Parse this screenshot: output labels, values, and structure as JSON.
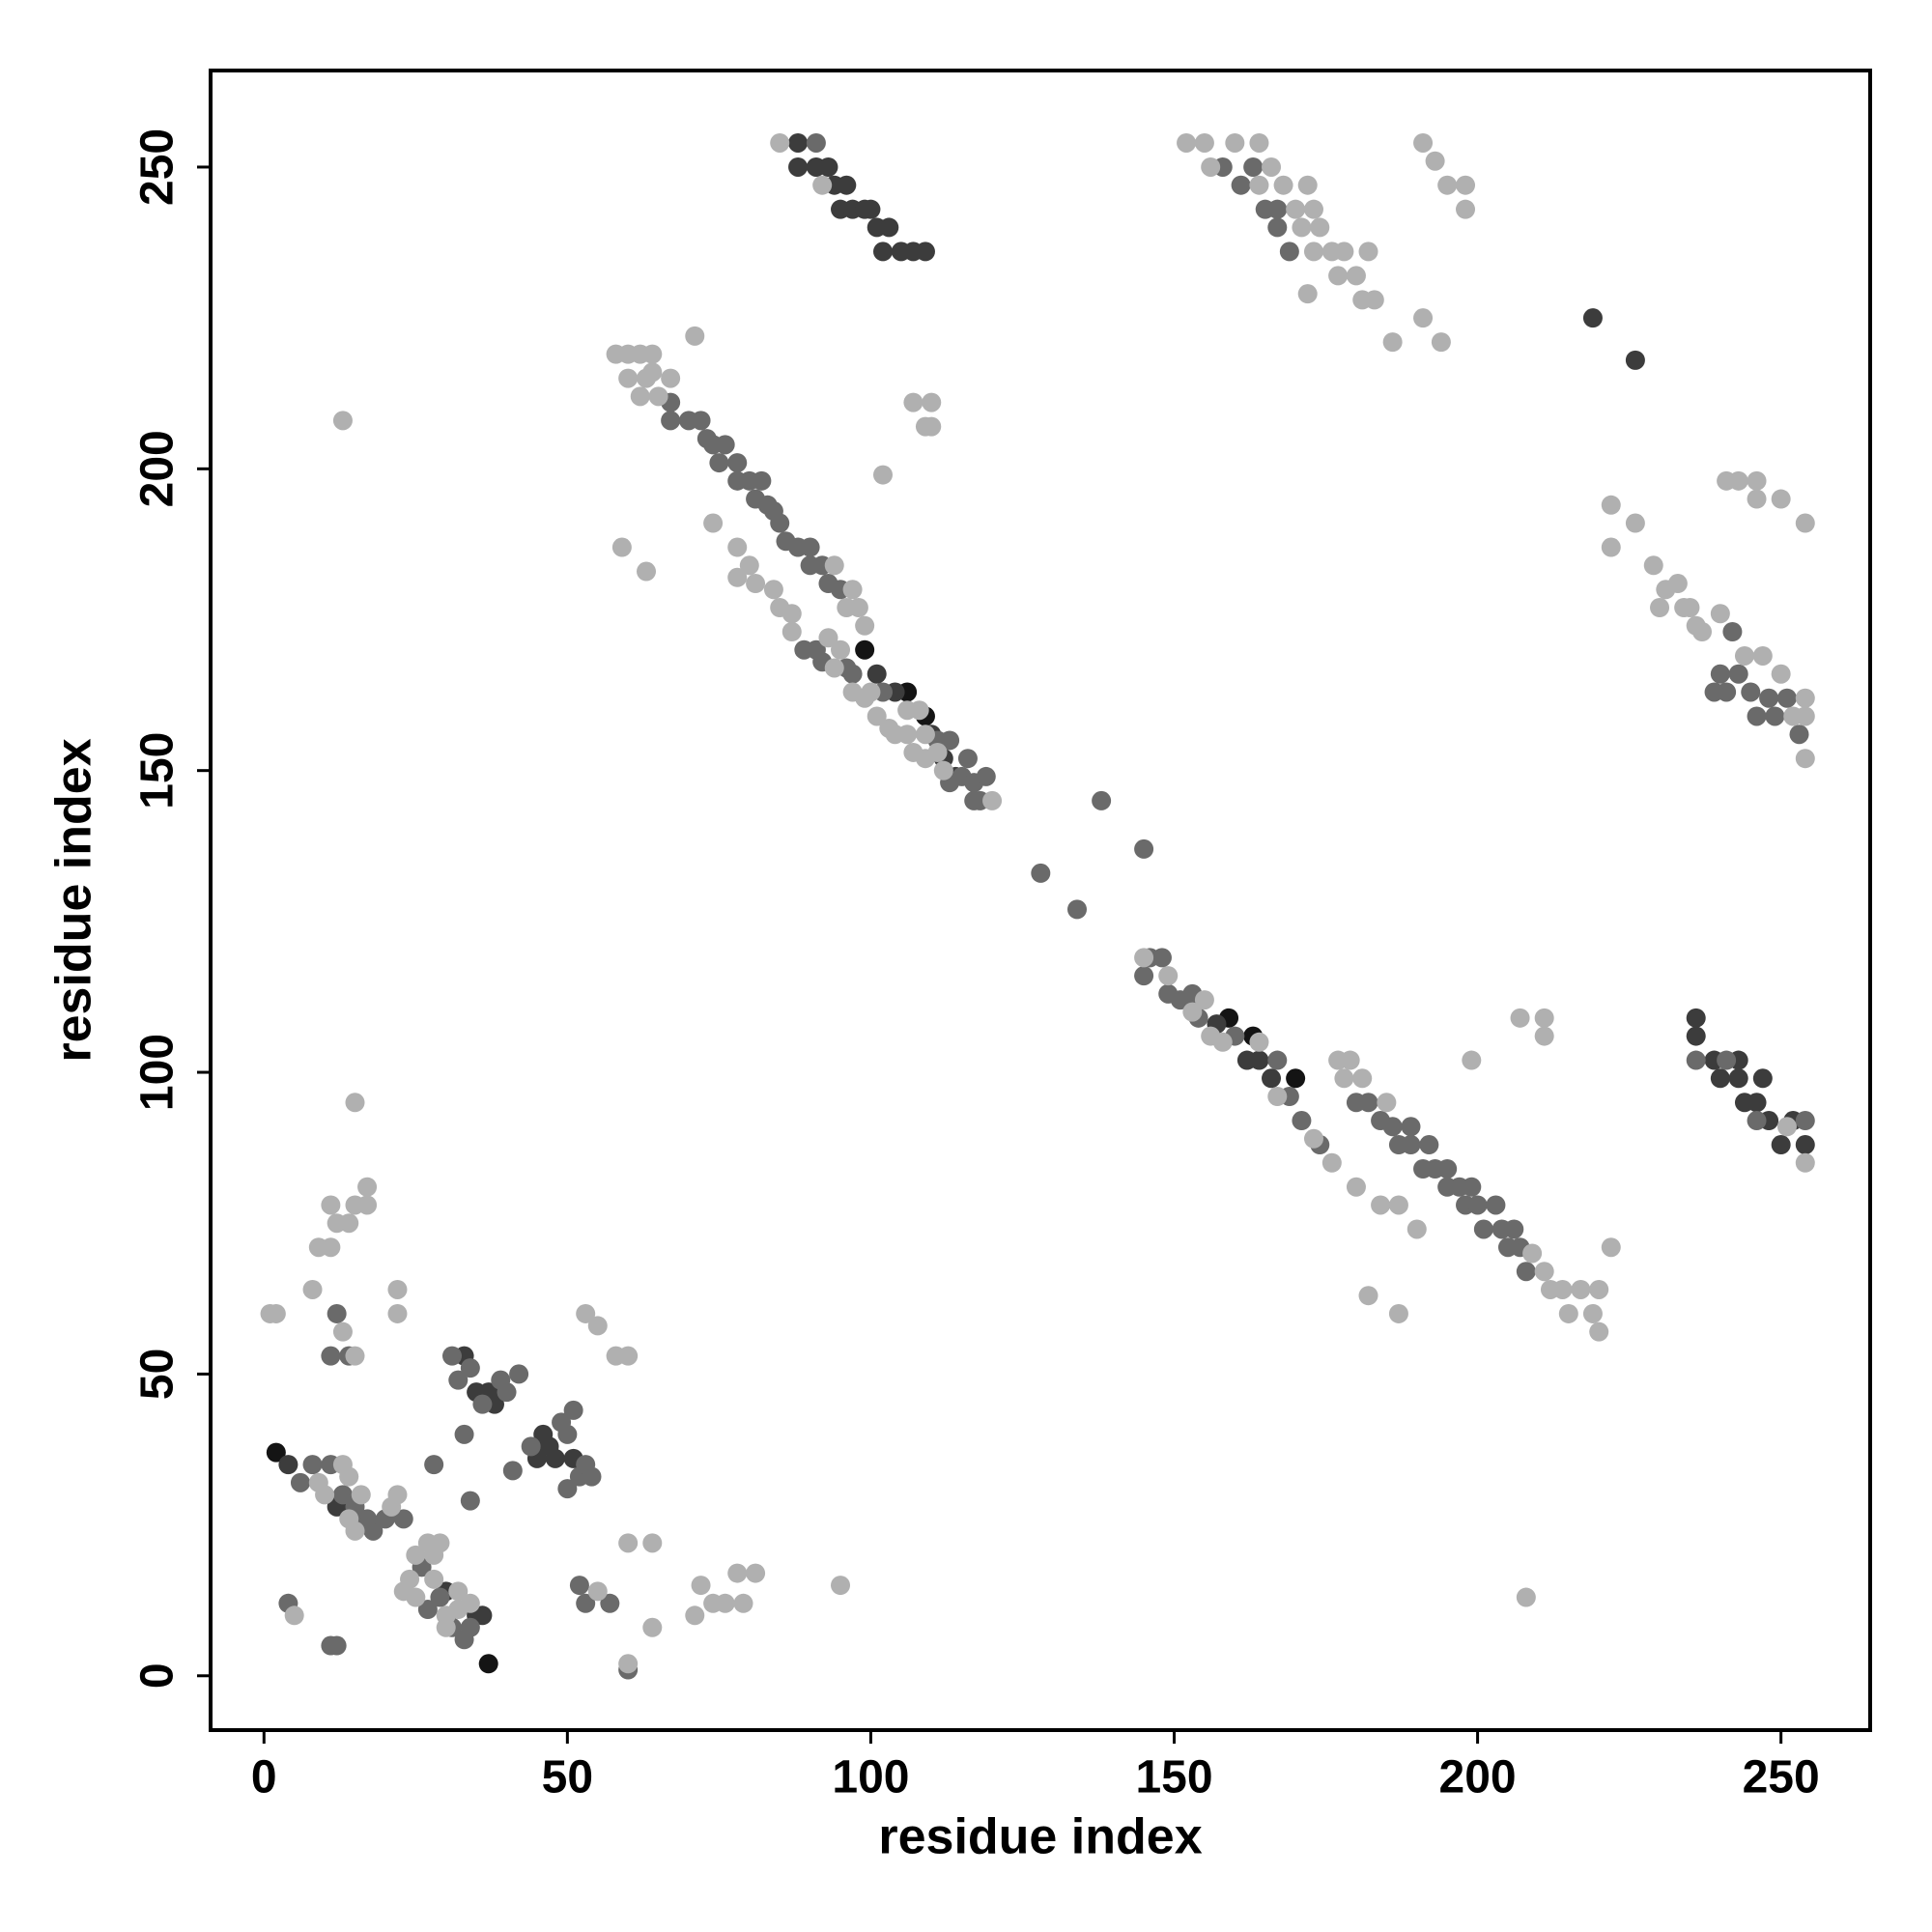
{
  "chart_data": {
    "type": "scatter",
    "x_label": "residue index",
    "y_label": "residue index",
    "xlim": [
      -8.8,
      264.7
    ],
    "ylim": [
      -9,
      266
    ],
    "xticks": [
      0,
      50,
      100,
      150,
      200,
      250
    ],
    "yticks": [
      0,
      50,
      100,
      150,
      200,
      250
    ],
    "grid": false,
    "series": [
      {
        "color": "#141414",
        "x": [
          99,
          106,
          109,
          159,
          163,
          170,
          37,
          2
        ],
        "y": [
          170,
          163,
          159,
          109,
          106,
          99,
          2,
          37
        ]
      },
      {
        "color": "#3c3c3c",
        "x": [
          88,
          88,
          91,
          93,
          94,
          95,
          96,
          97,
          99,
          100,
          101,
          102,
          103,
          105,
          107,
          109,
          219,
          226,
          236,
          236,
          239,
          240,
          243,
          243,
          244,
          246,
          247,
          248,
          250,
          252,
          254,
          101,
          104,
          110,
          112,
          114,
          157,
          162,
          164,
          166,
          35,
          37,
          38,
          46,
          47,
          48,
          51,
          35,
          33,
          36,
          4,
          12,
          30,
          45
        ],
        "y": [
          254,
          250,
          250,
          250,
          247,
          243,
          247,
          243,
          243,
          243,
          240,
          236,
          240,
          236,
          236,
          236,
          225,
          218,
          109,
          106,
          102,
          99,
          99,
          102,
          95,
          95,
          99,
          92,
          88,
          92,
          88,
          166,
          163,
          156,
          152,
          149,
          108,
          102,
          102,
          99,
          47,
          47,
          45,
          40,
          38,
          36,
          36,
          10,
          53,
          10,
          35,
          28,
          14,
          36
        ]
      },
      {
        "color": "#6a6a6a",
        "x": [
          91,
          243,
          241,
          239,
          246,
          236,
          241,
          246,
          254,
          67,
          67,
          70,
          72,
          73,
          74,
          75,
          76,
          78,
          78,
          80,
          81,
          82,
          83,
          84,
          85,
          86,
          88,
          90,
          90,
          92,
          93,
          95,
          89,
          91,
          92,
          96,
          97,
          102,
          111,
          113,
          115,
          116,
          117,
          118,
          119,
          113,
          117,
          128,
          134,
          145,
          138,
          145,
          146,
          148,
          149,
          151,
          153,
          154,
          160,
          167,
          169,
          171,
          174,
          180,
          182,
          184,
          186,
          187,
          189,
          189,
          191,
          192,
          193,
          195,
          195,
          197,
          198,
          199,
          200,
          201,
          203,
          204,
          205,
          206,
          207,
          208,
          158,
          161,
          163,
          165,
          167,
          169,
          167,
          240,
          242,
          245,
          248,
          249,
          251,
          253,
          6,
          8,
          11,
          13,
          15,
          18,
          20,
          23,
          26,
          27,
          29,
          31,
          33,
          34,
          31,
          32,
          34,
          36,
          39,
          40,
          42,
          44,
          49,
          50,
          51,
          52,
          53,
          54,
          50,
          41,
          33,
          34,
          28,
          4,
          12,
          11,
          52,
          53,
          57,
          60,
          12,
          14,
          11,
          17
        ],
        "y": [
          254,
          166,
          163,
          163,
          159,
          102,
          102,
          92,
          92,
          211,
          208,
          208,
          208,
          205,
          204,
          201,
          204,
          201,
          198,
          198,
          195,
          198,
          194,
          193,
          191,
          188,
          187,
          187,
          184,
          184,
          181,
          180,
          170,
          170,
          168,
          167,
          166,
          163,
          155,
          155,
          149,
          152,
          148,
          145,
          149,
          148,
          145,
          133,
          127,
          137,
          145,
          116,
          119,
          119,
          113,
          112,
          113,
          109,
          106,
          102,
          96,
          92,
          88,
          95,
          95,
          92,
          91,
          88,
          88,
          91,
          84,
          88,
          84,
          84,
          81,
          81,
          78,
          81,
          78,
          74,
          78,
          74,
          71,
          74,
          71,
          67,
          250,
          247,
          250,
          243,
          240,
          236,
          243,
          166,
          173,
          163,
          162,
          159,
          162,
          156,
          32,
          35,
          35,
          30,
          28,
          24,
          26,
          26,
          18,
          11,
          13,
          8,
          6,
          8,
          53,
          49,
          51,
          45,
          49,
          47,
          50,
          38,
          42,
          40,
          44,
          33,
          35,
          33,
          31,
          34,
          40,
          29,
          35,
          12,
          5,
          5,
          15,
          12,
          12,
          1,
          60,
          53,
          53,
          26
        ]
      },
      {
        "color": "#b0b0b0",
        "x": [
          85,
          92,
          152,
          155,
          156,
          160,
          164,
          164,
          166,
          168,
          170,
          171,
          172,
          173,
          173,
          174,
          176,
          177,
          178,
          180,
          181,
          172,
          182,
          183,
          186,
          191,
          193,
          191,
          194,
          195,
          198,
          198,
          58,
          60,
          62,
          60,
          63,
          64,
          62,
          65,
          64,
          67,
          71,
          94,
          96,
          97,
          98,
          99,
          106,
          108,
          109,
          120,
          74,
          78,
          80,
          78,
          81,
          84,
          85,
          87,
          87,
          93,
          94,
          95,
          97,
          99,
          100,
          101,
          103,
          104,
          106,
          107,
          109,
          111,
          112,
          59,
          63,
          102,
          107,
          109,
          110,
          110,
          13,
          145,
          149,
          155,
          158,
          156,
          153,
          164,
          167,
          173,
          176,
          180,
          184,
          187,
          190,
          177,
          179,
          178,
          181,
          185,
          209,
          211,
          212,
          214,
          215,
          217,
          219,
          220,
          220,
          199,
          207,
          211,
          211,
          222,
          182,
          187,
          208,
          222,
          222,
          226,
          229,
          230,
          231,
          233,
          234,
          235,
          236,
          240,
          237,
          244,
          247,
          250,
          252,
          254,
          254,
          254,
          241,
          243,
          246,
          246,
          250,
          254,
          254,
          251,
          9,
          10,
          14,
          15,
          16,
          21,
          22,
          14,
          13,
          25,
          27,
          28,
          24,
          23,
          25,
          30,
          32,
          28,
          32,
          34,
          29,
          30,
          5,
          55,
          60,
          64,
          64,
          71,
          72,
          74,
          76,
          78,
          79,
          81,
          95,
          53,
          55,
          58,
          60,
          1,
          2,
          13,
          15,
          8,
          22,
          22,
          9,
          11,
          11,
          14,
          15,
          17,
          17,
          15,
          12,
          60
        ],
        "y": [
          254,
          247,
          254,
          254,
          250,
          254,
          254,
          247,
          250,
          247,
          243,
          240,
          247,
          243,
          236,
          240,
          236,
          232,
          236,
          232,
          228,
          229,
          236,
          228,
          221,
          254,
          251,
          225,
          221,
          247,
          247,
          243,
          219,
          219,
          219,
          215,
          215,
          219,
          212,
          212,
          216,
          215,
          222,
          184,
          177,
          180,
          177,
          174,
          160,
          160,
          156,
          145,
          191,
          187,
          184,
          182,
          181,
          180,
          177,
          176,
          173,
          172,
          167,
          170,
          163,
          162,
          163,
          159,
          157,
          156,
          156,
          153,
          152,
          153,
          150,
          187,
          183,
          199,
          211,
          207,
          211,
          207,
          208,
          119,
          116,
          112,
          105,
          106,
          110,
          105,
          96,
          89,
          85,
          81,
          78,
          78,
          74,
          102,
          102,
          99,
          99,
          95,
          70,
          67,
          64,
          64,
          60,
          64,
          60,
          57,
          64,
          102,
          109,
          109,
          106,
          71,
          63,
          60,
          13,
          194,
          187,
          191,
          184,
          177,
          180,
          181,
          177,
          177,
          174,
          176,
          173,
          169,
          169,
          166,
          159,
          159,
          152,
          162,
          198,
          198,
          195,
          198,
          195,
          191,
          85,
          91,
          32,
          30,
          26,
          24,
          30,
          28,
          30,
          33,
          35,
          20,
          22,
          20,
          16,
          14,
          13,
          10,
          11,
          16,
          14,
          12,
          22,
          8,
          10,
          14,
          22,
          22,
          8,
          10,
          15,
          12,
          12,
          17,
          12,
          17,
          15,
          60,
          58,
          53,
          53,
          60,
          60,
          57,
          53,
          64,
          64,
          60,
          71,
          71,
          78,
          75,
          78,
          78,
          81,
          95,
          75,
          2
        ]
      }
    ]
  }
}
